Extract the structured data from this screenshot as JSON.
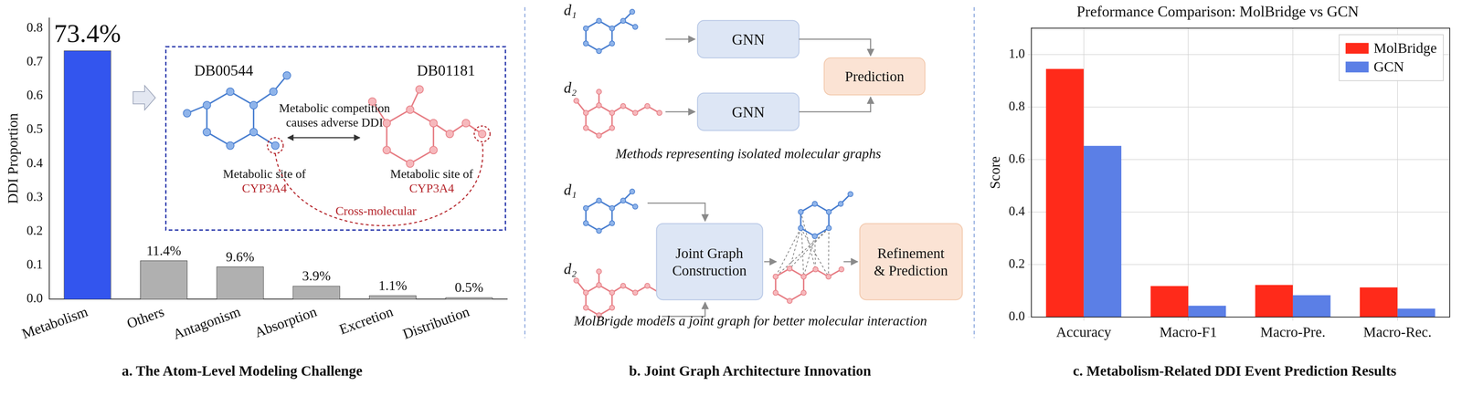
{
  "chart_data": [
    {
      "type": "bar",
      "ylabel": "DDI Proportion",
      "categories": [
        "Metabolism",
        "Others",
        "Antagonism",
        "Absorption",
        "Excretion",
        "Distribution"
      ],
      "values": [
        0.734,
        0.114,
        0.096,
        0.039,
        0.011,
        0.005
      ],
      "value_labels": [
        "73.4%",
        "11.4%",
        "9.6%",
        "3.9%",
        "1.1%",
        "0.5%"
      ],
      "colors": [
        "#3355ee",
        "#b0b0b0",
        "#b0b0b0",
        "#b0b0b0",
        "#b0b0b0",
        "#b0b0b0"
      ],
      "ylim": [
        0,
        0.83
      ],
      "yticks": [
        {
          "value": 0,
          "label": "0.0"
        },
        0.1,
        0.2,
        0.3,
        0.4,
        0.5,
        0.6,
        0.7,
        0.8
      ],
      "grid": false,
      "data_labels": true
    },
    {
      "type": "bar",
      "title": "Preformance Comparison: MolBridge vs GCN",
      "ylabel": "Score",
      "categories": [
        "Accuracy",
        "Macro-F1",
        "Macro-Pre.",
        "Macro-Rec."
      ],
      "series": [
        {
          "name": "MolBridge",
          "color": "#ff2a1a",
          "values": [
            0.945,
            0.118,
            0.122,
            0.113
          ]
        },
        {
          "name": "GCN",
          "color": "#5b7fe6",
          "values": [
            0.652,
            0.043,
            0.083,
            0.032
          ]
        }
      ],
      "ylim": [
        0,
        1.1
      ],
      "yticks": [
        {
          "value": 0,
          "label": "0.0"
        },
        0.2,
        0.4,
        0.6,
        0.8,
        {
          "value": 1,
          "label": "1.0"
        }
      ],
      "grid": true,
      "legend": "upper right"
    }
  ],
  "panel_a": {
    "caption": "a. The Atom-Level Modeling Challenge",
    "inset": {
      "drug_left": "DB00544",
      "drug_right": "DB01181",
      "interaction": [
        "Metabolic competition",
        "causes adverse DDI"
      ],
      "sites": [
        {
          "label": "Metabolic site of",
          "enzyme": "CYP3A4"
        },
        {
          "label": "Metabolic site of",
          "enzyme": "CYP3A4"
        }
      ],
      "link": "Cross-molecular"
    }
  },
  "panel_b": {
    "caption": "b. Joint Graph Architecture Innovation",
    "top": {
      "inputs": [
        "d₁",
        "d₂"
      ],
      "encoders": [
        "GNN",
        "GNN"
      ],
      "output": "Prediction",
      "description": "Methods representing isolated molecular graphs"
    },
    "bottom": {
      "inputs": [
        "d₁",
        "d₂"
      ],
      "steps": [
        [
          "Joint Graph",
          "Construction"
        ],
        [
          "Refinement",
          "& Prediction"
        ]
      ],
      "description": "MolBrigde models a joint graph for better molecular interaction"
    }
  },
  "panel_c": {
    "caption": "c. Metabolism-Related DDI Event Prediction Results"
  }
}
